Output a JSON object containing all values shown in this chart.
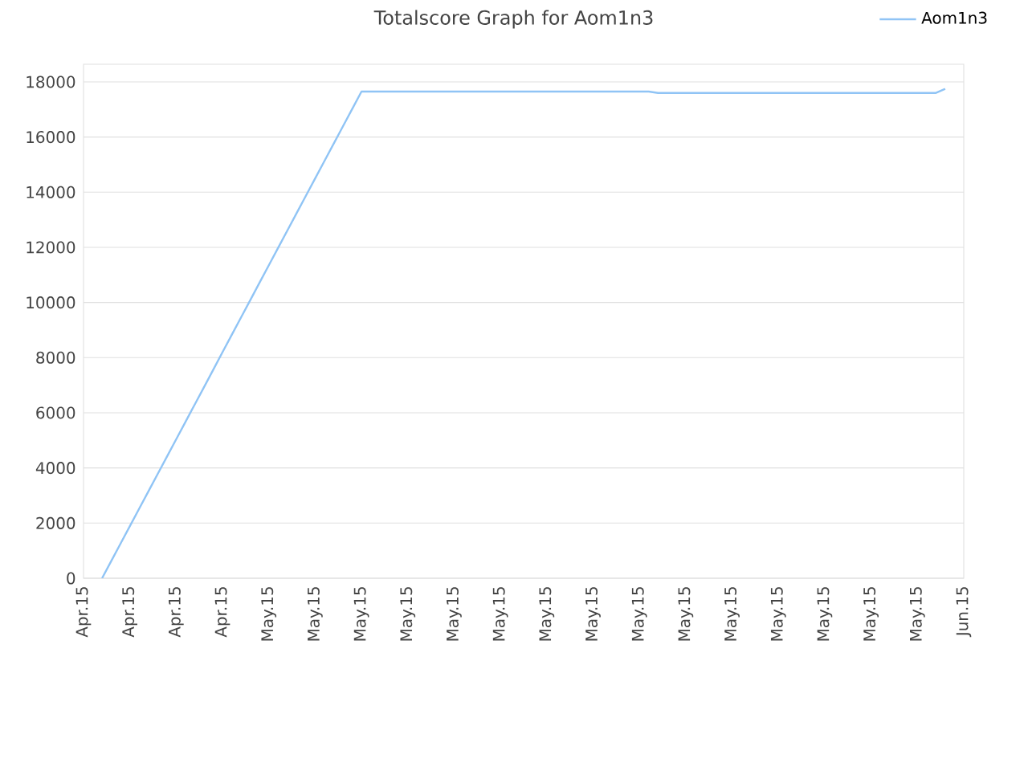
{
  "chart_data": {
    "type": "line",
    "title": "Totalscore Graph for Aom1n3",
    "categories": [
      "Apr.15",
      null,
      null,
      null,
      null,
      "Apr.15",
      null,
      null,
      null,
      null,
      "Apr.15",
      null,
      null,
      null,
      null,
      "Apr.15",
      null,
      null,
      null,
      null,
      "May.15",
      null,
      null,
      null,
      null,
      "May.15",
      null,
      null,
      null,
      null,
      "May.15",
      null,
      null,
      null,
      null,
      "May.15",
      null,
      null,
      null,
      null,
      "May.15",
      null,
      null,
      null,
      null,
      "May.15",
      null,
      null,
      null,
      null,
      "May.15",
      null,
      null,
      null,
      null,
      "May.15",
      null,
      null,
      null,
      null,
      "May.15",
      null,
      null,
      null,
      null,
      "May.15",
      null,
      null,
      null,
      null,
      "May.15",
      null,
      null,
      null,
      null,
      "May.15",
      null,
      null,
      null,
      null,
      "May.15",
      null,
      null,
      null,
      null,
      "May.15",
      null,
      null,
      null,
      null,
      "May.15",
      null,
      null,
      null,
      null,
      "Jun.15"
    ],
    "series": [
      {
        "name": "Aom1n3",
        "color": "#90c4f5",
        "values": [
          null,
          null,
          0,
          630,
          1260,
          1890,
          2520,
          3150,
          3780,
          4410,
          5040,
          5670,
          6300,
          6930,
          7560,
          8200,
          8830,
          9460,
          10090,
          10720,
          11350,
          11980,
          12610,
          13240,
          13870,
          14500,
          15130,
          15760,
          16390,
          17020,
          17650,
          17650,
          17650,
          17650,
          17650,
          17650,
          17650,
          17650,
          17650,
          17650,
          17650,
          17650,
          17650,
          17650,
          17650,
          17650,
          17650,
          17650,
          17650,
          17650,
          17650,
          17650,
          17650,
          17650,
          17650,
          17650,
          17650,
          17650,
          17650,
          17650,
          17650,
          17650,
          17600,
          17600,
          17600,
          17600,
          17600,
          17600,
          17600,
          17600,
          17600,
          17600,
          17600,
          17600,
          17600,
          17600,
          17600,
          17600,
          17600,
          17600,
          17600,
          17600,
          17600,
          17600,
          17600,
          17600,
          17600,
          17600,
          17600,
          17600,
          17600,
          17600,
          17600,
          17750,
          null,
          null
        ]
      }
    ],
    "ylim": [
      0,
      18640
    ],
    "yticks": [
      0,
      2000,
      4000,
      6000,
      8000,
      10000,
      12000,
      14000,
      16000,
      18000
    ],
    "grid": "y",
    "legend": "top right",
    "marker": "none",
    "line_style": "solid"
  }
}
